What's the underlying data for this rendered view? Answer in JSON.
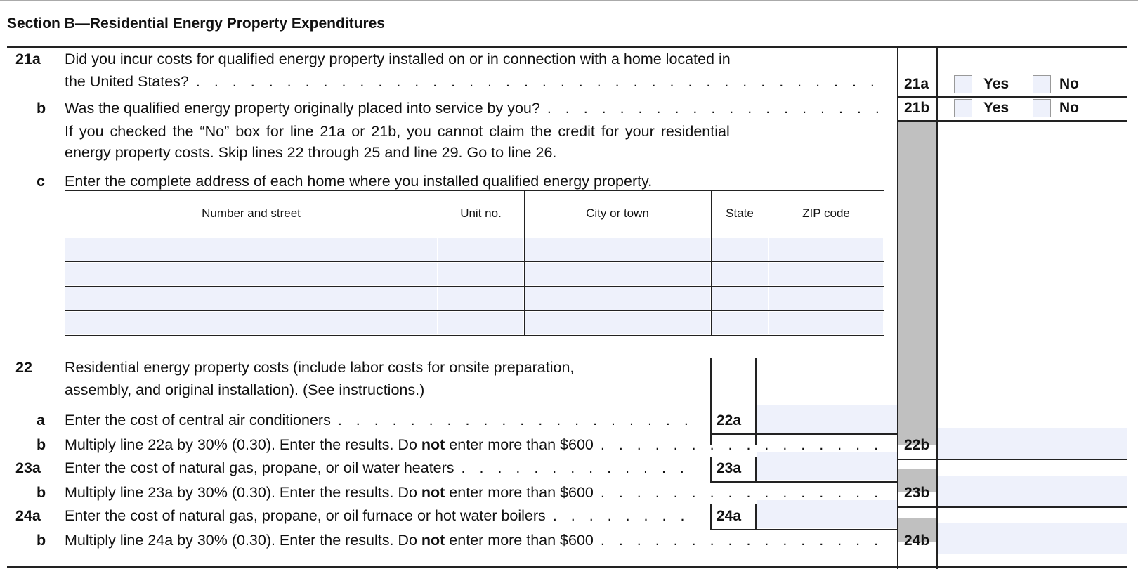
{
  "section_title": "Section B—Residential Energy Property Expenditures",
  "line21a": {
    "num": "21a",
    "text1": "Did you incur costs for qualified energy property installed on or in connection with a home located in",
    "text2": "the United States?",
    "box": "21a",
    "yes": "Yes",
    "no": "No"
  },
  "line21b": {
    "num": "b",
    "text": "Was the qualified energy property originally placed into service by you?",
    "box": "21b",
    "yes": "Yes",
    "no": "No",
    "note1": "If you checked the “No” box for line 21a or 21b, you cannot claim the credit for your residential",
    "note2": "energy property costs. Skip lines 22 through 25 and line 29. Go to line 26."
  },
  "line21c": {
    "num": "c",
    "text": "Enter the complete address of each home where you installed qualified energy property."
  },
  "address_table": {
    "columns": [
      "Number and street",
      "Unit no.",
      "City or town",
      "State",
      "ZIP code"
    ],
    "rows": [
      [
        "",
        "",
        "",
        "",
        ""
      ],
      [
        "",
        "",
        "",
        "",
        ""
      ],
      [
        "",
        "",
        "",
        "",
        ""
      ],
      [
        "",
        "",
        "",
        "",
        ""
      ]
    ]
  },
  "line22": {
    "num": "22",
    "text1": "Residential energy property costs (include labor costs for onsite preparation,",
    "text2": "assembly, and original installation). (See instructions.)"
  },
  "line22a": {
    "num": "a",
    "text": "Enter the cost of central air conditioners",
    "box": "22a",
    "value": ""
  },
  "line22b": {
    "num": "b",
    "text_pre": "Multiply line 22a by 30% (0.30). Enter the results. Do ",
    "text_bold": "not",
    "text_post": " enter more than $600",
    "box": "22b",
    "value": ""
  },
  "line23a": {
    "num": "23a",
    "text": "Enter the cost of natural gas, propane, or oil water heaters",
    "box": "23a",
    "value": ""
  },
  "line23b": {
    "num": "b",
    "text_pre": "Multiply line 23a by 30% (0.30). Enter the results. Do ",
    "text_bold": "not",
    "text_post": " enter more than $600",
    "box": "23b",
    "value": ""
  },
  "line24a": {
    "num": "24a",
    "text": "Enter the cost of natural gas, propane, or oil furnace or hot water boilers",
    "box": "24a",
    "value": ""
  },
  "line24b": {
    "num": "b",
    "text_pre": "Multiply line 24a by 30% (0.30). Enter the results. Do ",
    "text_bold": "not",
    "text_post": " enter more than $600",
    "box": "24b",
    "value": ""
  }
}
